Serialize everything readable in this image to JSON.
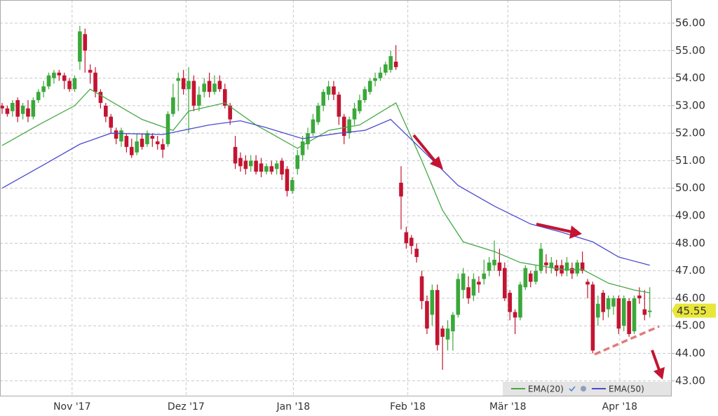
{
  "chart_data": {
    "type": "candlestick",
    "up_color": "#3aa83a",
    "down_color": "#c31432",
    "open": [
      53.0,
      52.9,
      52.8,
      53.2,
      52.7,
      52.9,
      52.6,
      53.2,
      53.5,
      53.7,
      54.0,
      54.2,
      54.1,
      53.9,
      53.6,
      54.6,
      55.6,
      54.3,
      54.2,
      53.5,
      53.0,
      52.6,
      52.1,
      51.7,
      51.9,
      51.5,
      51.3,
      51.8,
      51.6,
      51.9,
      51.7,
      51.6,
      51.6,
      52.7,
      53.9,
      54.0,
      53.6,
      53.9,
      53.0,
      53.5,
      53.9,
      53.5,
      53.9,
      53.6,
      53.0,
      51.5,
      51.1,
      51.0,
      50.8,
      51.0,
      50.9,
      50.6,
      50.8,
      50.7,
      51.0,
      50.7,
      49.9,
      50.7,
      51.2,
      51.6,
      52.0,
      52.4,
      53.0,
      53.4,
      53.7,
      53.4,
      52.6,
      52.0,
      52.5,
      52.8,
      53.2,
      53.5,
      53.9,
      54.0,
      54.2,
      54.3,
      54.6,
      50.2,
      48.4,
      48.2,
      47.8,
      46.8,
      45.9,
      45.4,
      46.3,
      44.9,
      44.5,
      44.8,
      45.4,
      46.3,
      46.4,
      46.1,
      46.6,
      46.7,
      47.0,
      47.2,
      47.3,
      47.1,
      46.2,
      45.5,
      45.3,
      46.4,
      46.9,
      46.6,
      47.0,
      47.3,
      47.1,
      47.2,
      47.2,
      47.0,
      47.1,
      46.9,
      47.3,
      46.6,
      46.5,
      45.3,
      46.2,
      45.6,
      45.7,
      46.0,
      45.0,
      45.9,
      44.8,
      46.1,
      45.6,
      45.5
    ],
    "high": [
      53.1,
      53.0,
      53.2,
      53.3,
      53.1,
      53.2,
      53.3,
      53.6,
      53.9,
      54.2,
      54.3,
      54.3,
      54.2,
      54.0,
      54.1,
      55.9,
      55.8,
      54.5,
      54.4,
      53.6,
      53.1,
      52.7,
      52.2,
      52.2,
      52.0,
      51.8,
      52.0,
      52.0,
      52.1,
      52.0,
      51.9,
      51.8,
      52.8,
      53.8,
      54.2,
      54.3,
      54.4,
      54.1,
      53.7,
      54.0,
      54.2,
      54.1,
      54.1,
      53.8,
      53.1,
      51.9,
      51.3,
      51.2,
      51.2,
      51.2,
      51.1,
      50.9,
      51.0,
      51.0,
      51.1,
      50.8,
      50.4,
      51.4,
      51.9,
      52.2,
      52.7,
      53.1,
      53.6,
      53.9,
      53.9,
      53.5,
      52.7,
      52.6,
      53.1,
      53.4,
      53.7,
      54.0,
      54.2,
      54.4,
      54.6,
      55.0,
      55.2,
      50.8,
      48.6,
      48.3,
      48.0,
      47.0,
      46.1,
      46.5,
      46.5,
      45.0,
      45.2,
      45.5,
      46.9,
      47.1,
      46.8,
      46.9,
      46.8,
      47.4,
      47.5,
      48.1,
      47.8,
      47.3,
      46.3,
      45.6,
      46.6,
      47.2,
      47.0,
      47.2,
      48.0,
      47.6,
      47.5,
      47.4,
      47.4,
      47.5,
      47.3,
      47.4,
      47.7,
      46.7,
      46.6,
      46.1,
      46.3,
      46.1,
      46.1,
      46.1,
      46.1,
      46.0,
      46.1,
      46.4,
      46.3,
      46.4
    ],
    "low": [
      52.7,
      52.6,
      52.6,
      52.4,
      52.5,
      52.4,
      52.5,
      53.1,
      53.3,
      53.6,
      53.8,
      53.9,
      53.6,
      53.5,
      53.5,
      54.3,
      54.2,
      53.8,
      53.3,
      52.9,
      52.4,
      52.0,
      51.6,
      51.5,
      51.3,
      51.1,
      51.2,
      51.4,
      51.5,
      51.5,
      51.4,
      51.1,
      51.5,
      52.6,
      52.8,
      53.4,
      52.0,
      52.8,
      52.8,
      53.3,
      53.3,
      53.4,
      53.5,
      52.9,
      52.3,
      50.7,
      50.6,
      50.5,
      50.6,
      50.5,
      50.4,
      50.5,
      50.5,
      50.5,
      50.3,
      49.7,
      49.8,
      50.5,
      51.0,
      51.4,
      51.9,
      52.3,
      52.8,
      53.2,
      53.2,
      52.3,
      51.6,
      51.8,
      52.3,
      52.7,
      53.1,
      53.4,
      53.7,
      53.9,
      54.1,
      54.2,
      54.3,
      48.5,
      47.8,
      47.6,
      47.3,
      45.6,
      44.7,
      45.0,
      44.1,
      43.4,
      44.1,
      44.1,
      45.3,
      46.0,
      45.8,
      45.9,
      46.2,
      46.5,
      46.8,
      47.0,
      46.8,
      45.9,
      45.2,
      44.7,
      45.2,
      46.3,
      46.4,
      46.5,
      46.9,
      46.9,
      46.9,
      46.8,
      46.8,
      46.8,
      46.7,
      46.8,
      46.9,
      46.0,
      44.0,
      45.0,
      45.2,
      45.3,
      45.4,
      44.7,
      44.8,
      44.6,
      44.7,
      45.8,
      45.2,
      45.3
    ],
    "close": [
      52.9,
      52.7,
      53.1,
      52.6,
      53.0,
      52.6,
      53.2,
      53.5,
      53.7,
      54.1,
      54.2,
      54.1,
      53.9,
      53.6,
      54.0,
      55.7,
      55.0,
      54.2,
      53.5,
      53.1,
      52.6,
      52.2,
      51.8,
      52.1,
      51.5,
      51.2,
      51.7,
      51.5,
      52.0,
      51.8,
      51.6,
      51.4,
      52.7,
      53.3,
      54.0,
      53.6,
      53.9,
      53.0,
      53.4,
      53.8,
      53.5,
      53.8,
      53.6,
      53.0,
      52.5,
      50.9,
      50.8,
      50.7,
      51.0,
      50.6,
      50.6,
      50.8,
      50.6,
      50.9,
      50.5,
      49.9,
      50.3,
      51.2,
      51.7,
      52.0,
      52.5,
      53.0,
      53.5,
      53.7,
      53.4,
      52.6,
      51.9,
      52.5,
      52.9,
      53.2,
      53.6,
      53.9,
      54.0,
      54.2,
      54.5,
      54.8,
      54.4,
      49.7,
      48.0,
      47.9,
      47.5,
      45.9,
      44.9,
      46.3,
      44.3,
      44.6,
      44.9,
      45.4,
      46.7,
      46.9,
      46.0,
      46.7,
      46.5,
      46.9,
      47.3,
      47.4,
      47.0,
      46.0,
      45.5,
      45.3,
      46.5,
      47.1,
      46.6,
      47.0,
      47.8,
      47.2,
      47.3,
      47.0,
      46.9,
      47.3,
      46.9,
      47.3,
      47.0,
      46.5,
      44.1,
      45.8,
      45.5,
      46.0,
      46.0,
      44.9,
      46.0,
      44.7,
      46.0,
      46.0,
      45.4,
      45.55
    ],
    "series": [
      {
        "name": "EMA(20)",
        "color": "#45a845",
        "x": [
          0,
          7,
          14,
          17,
          27,
          33,
          36,
          43,
          49,
          57,
          63,
          69,
          76,
          81,
          85,
          89,
          95,
          100,
          108,
          112,
          117,
          122,
          125
        ],
        "values": [
          51.55,
          52.3,
          53.0,
          53.6,
          52.5,
          52.1,
          52.8,
          53.1,
          52.3,
          51.45,
          52.1,
          52.3,
          53.1,
          51.0,
          49.2,
          48.05,
          47.7,
          47.3,
          47.05,
          47.05,
          46.55,
          46.3,
          46.2
        ]
      },
      {
        "name": "EMA(50)",
        "color": "#4a4ad0",
        "x": [
          0,
          8,
          15,
          21,
          31,
          40,
          46,
          51,
          58,
          65,
          70,
          75,
          81,
          88,
          95,
          102,
          108,
          114,
          119,
          125
        ],
        "values": [
          50.0,
          50.85,
          51.6,
          52.0,
          51.95,
          52.3,
          52.45,
          52.2,
          51.8,
          52.0,
          52.1,
          52.5,
          51.4,
          50.1,
          49.35,
          48.7,
          48.4,
          48.05,
          47.5,
          47.2
        ]
      }
    ],
    "last_price": {
      "value": 45.55,
      "label": "45.55"
    },
    "xlim": [
      -0.41,
      129.1
    ],
    "xticks": [
      {
        "value": 13.5,
        "label": "Nov '17"
      },
      {
        "value": 35.5,
        "label": "Dez '17"
      },
      {
        "value": 56.2,
        "label": "Jan '18"
      },
      {
        "value": 78.3,
        "label": "Feb '18"
      },
      {
        "value": 97.6,
        "label": "Mär '18"
      },
      {
        "value": 119.2,
        "label": "Apr '18"
      }
    ],
    "ylim": [
      42.46,
      56.84
    ],
    "yticks": [
      {
        "value": 43,
        "label": "43.00"
      },
      {
        "value": 44,
        "label": "44.00"
      },
      {
        "value": 45,
        "label": "45.00"
      },
      {
        "value": 46,
        "label": "46.00"
      },
      {
        "value": 47,
        "label": "47.00"
      },
      {
        "value": 48,
        "label": "48.00"
      },
      {
        "value": 49,
        "label": "49.00"
      },
      {
        "value": 50,
        "label": "50.00"
      },
      {
        "value": 51,
        "label": "51.00"
      },
      {
        "value": 52,
        "label": "52.00"
      },
      {
        "value": 53,
        "label": "53.00"
      },
      {
        "value": 54,
        "label": "54.00"
      },
      {
        "value": 55,
        "label": "55.00"
      },
      {
        "value": 56,
        "label": "56.00"
      }
    ],
    "grid": true,
    "legend": "lower right"
  }
}
